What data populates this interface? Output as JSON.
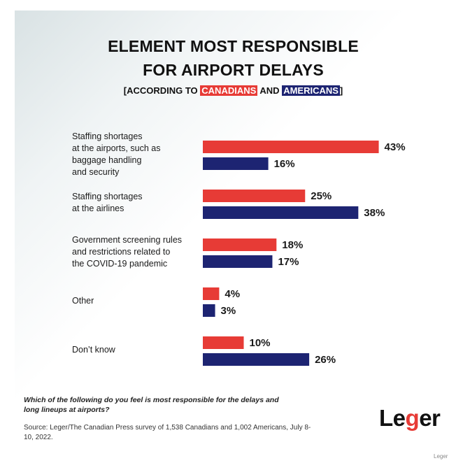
{
  "title_line1": "ELEMENT MOST RESPONSIBLE",
  "title_line2": "FOR AIRPORT DELAYS",
  "subtitle": {
    "open": "[ACCORDING TO ",
    "group1": "CANADIANS",
    "mid": " AND ",
    "group2": "AMERICANS",
    "close": "]"
  },
  "question": "Which of the following do you feel is most responsible for the delays and long lineups at airports?",
  "source": "Source: Leger/The Canadian Press survey of 1,538 Canadians and 1,002 Americans, July 8-10, 2022.",
  "logo": {
    "part1": "Le",
    "part2": "g",
    "part3": "er"
  },
  "watermark": "Leger",
  "colors": {
    "canadians": "#e73b36",
    "americans": "#1d2472"
  },
  "chart_data": {
    "type": "bar",
    "orientation": "horizontal",
    "categories": [
      "Staffing shortages\nat the airports, such as\nbaggage handling\nand security",
      "Staffing shortages\nat the airlines",
      "Government screening rules\nand restrictions related to\nthe COVID-19 pandemic",
      "Other",
      "Don’t know"
    ],
    "series": [
      {
        "name": "CANADIANS",
        "values": [
          43,
          25,
          18,
          4,
          10
        ],
        "labels": [
          "43%",
          "25%",
          "18%",
          "4%",
          "10%"
        ]
      },
      {
        "name": "AMERICANS",
        "values": [
          16,
          38,
          17,
          3,
          26
        ],
        "labels": [
          "16%",
          "38%",
          "17%",
          "3%",
          "26%"
        ]
      }
    ],
    "xlim": [
      0,
      50
    ],
    "unit": "%",
    "grid": false
  }
}
